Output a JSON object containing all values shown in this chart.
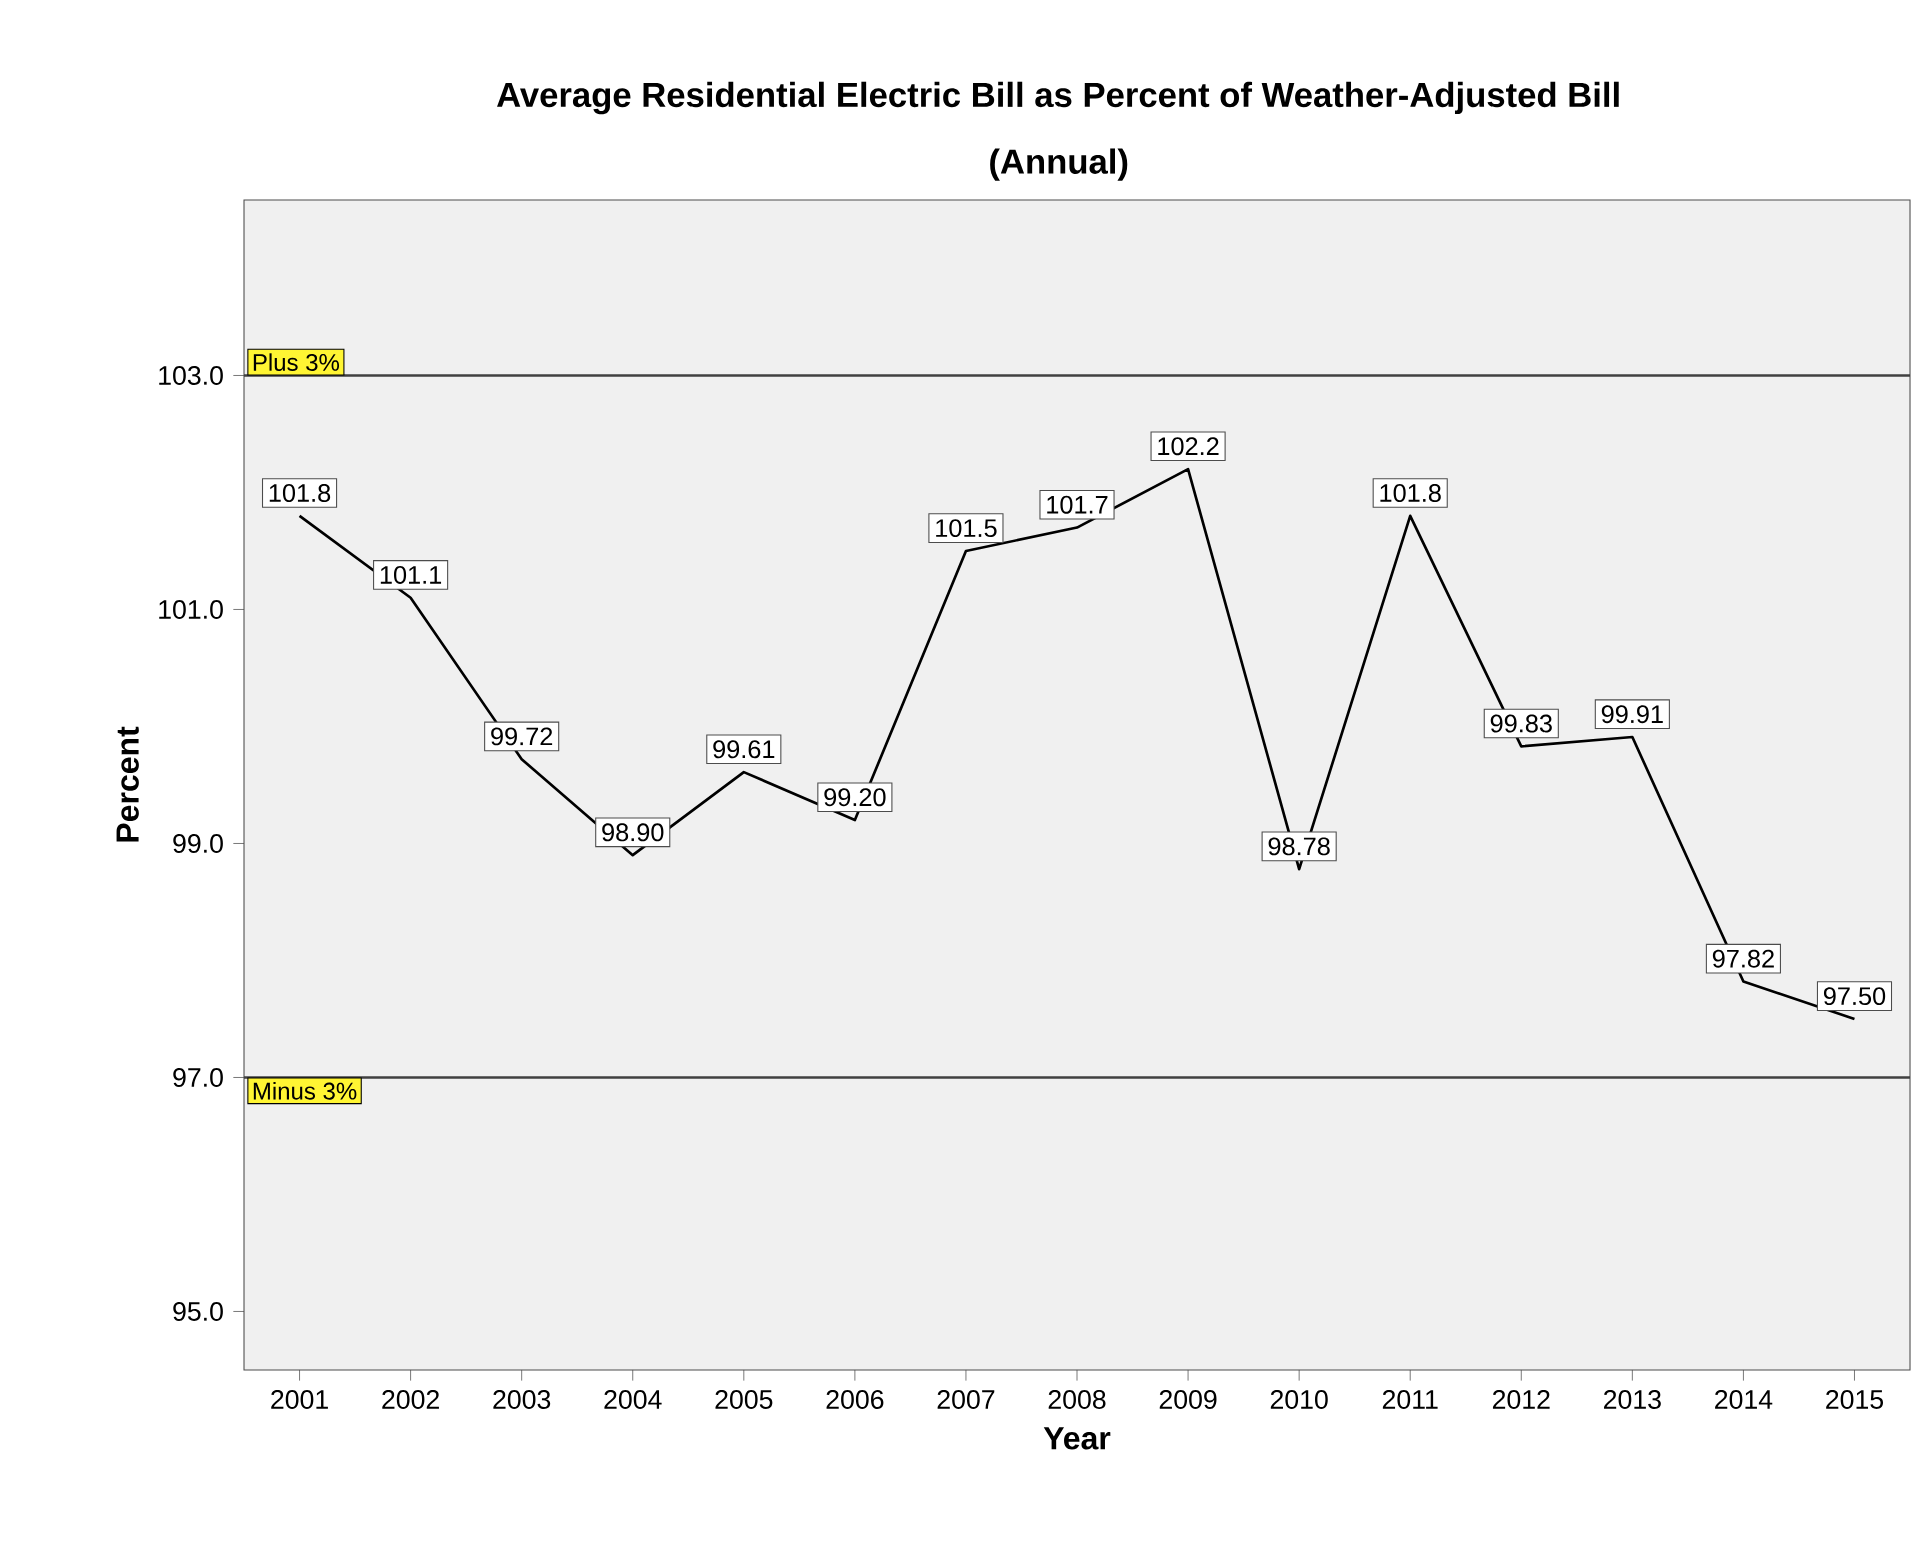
{
  "chart_data": {
    "type": "line",
    "title": "Average Residential Electric Bill as Percent of Weather-Adjusted Bill",
    "subtitle": "(Annual)",
    "xlabel": "Year",
    "ylabel": "Percent",
    "categories": [
      "2001",
      "2002",
      "2003",
      "2004",
      "2005",
      "2006",
      "2007",
      "2008",
      "2009",
      "2010",
      "2011",
      "2012",
      "2013",
      "2014",
      "2015"
    ],
    "values": [
      101.8,
      101.1,
      99.72,
      98.9,
      99.61,
      99.2,
      101.5,
      101.7,
      102.2,
      98.78,
      101.8,
      99.83,
      99.91,
      97.82,
      97.5
    ],
    "value_labels": [
      "101.8",
      "101.1",
      "99.72",
      "98.90",
      "99.61",
      "99.20",
      "101.5",
      "101.7",
      "102.2",
      "98.78",
      "101.8",
      "99.83",
      "99.91",
      "97.82",
      "97.50"
    ],
    "color": "#000000",
    "ylim": [
      94.5,
      104.5
    ],
    "yticks": [
      {
        "value": 95,
        "label": "95.0"
      },
      {
        "value": 97,
        "label": "97.0"
      },
      {
        "value": 99,
        "label": "99.0"
      },
      {
        "value": 101,
        "label": "101.0"
      },
      {
        "value": 103,
        "label": "103.0"
      }
    ],
    "ref_lines": [
      {
        "axis": "y",
        "value": 103,
        "label": "Plus 3%",
        "color": "#404040"
      },
      {
        "axis": "y",
        "value": 97,
        "label": "Minus 3%",
        "color": "#404040"
      }
    ]
  }
}
